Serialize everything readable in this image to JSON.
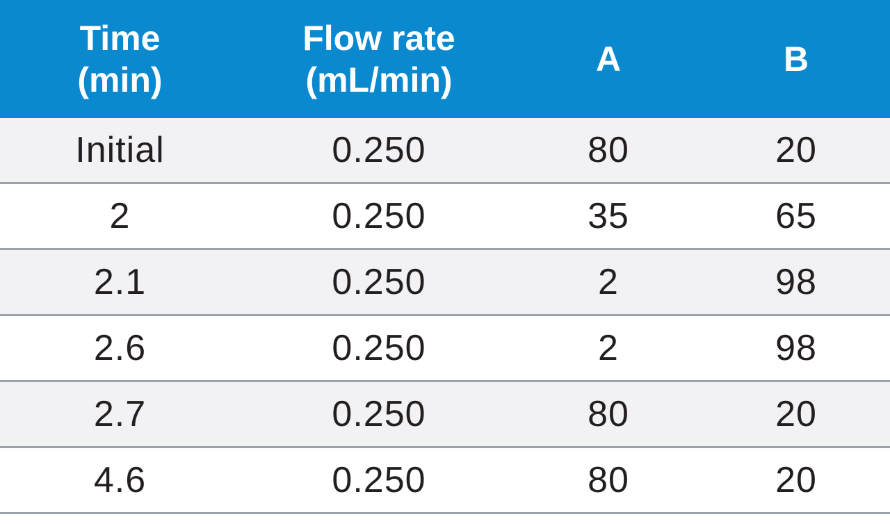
{
  "table": {
    "header": {
      "time": "Time\n(min)",
      "flow_rate": "Flow rate\n(mL/min)",
      "a": "A",
      "b": "B"
    },
    "rows": [
      {
        "time": "Initial",
        "flow_rate": "0.250",
        "a": "80",
        "b": "20"
      },
      {
        "time": "2",
        "flow_rate": "0.250",
        "a": "35",
        "b": "65"
      },
      {
        "time": "2.1",
        "flow_rate": "0.250",
        "a": "2",
        "b": "98"
      },
      {
        "time": "2.6",
        "flow_rate": "0.250",
        "a": "2",
        "b": "98"
      },
      {
        "time": "2.7",
        "flow_rate": "0.250",
        "a": "80",
        "b": "20"
      },
      {
        "time": "4.6",
        "flow_rate": "0.250",
        "a": "80",
        "b": "20"
      }
    ]
  },
  "colors": {
    "header_bg": "#0a89cf",
    "header_text": "#ffffff",
    "row_shade": "#f2f1f4",
    "row_plain": "#ffffff",
    "divider": "#9aa3aa",
    "body_text": "#231f20"
  }
}
